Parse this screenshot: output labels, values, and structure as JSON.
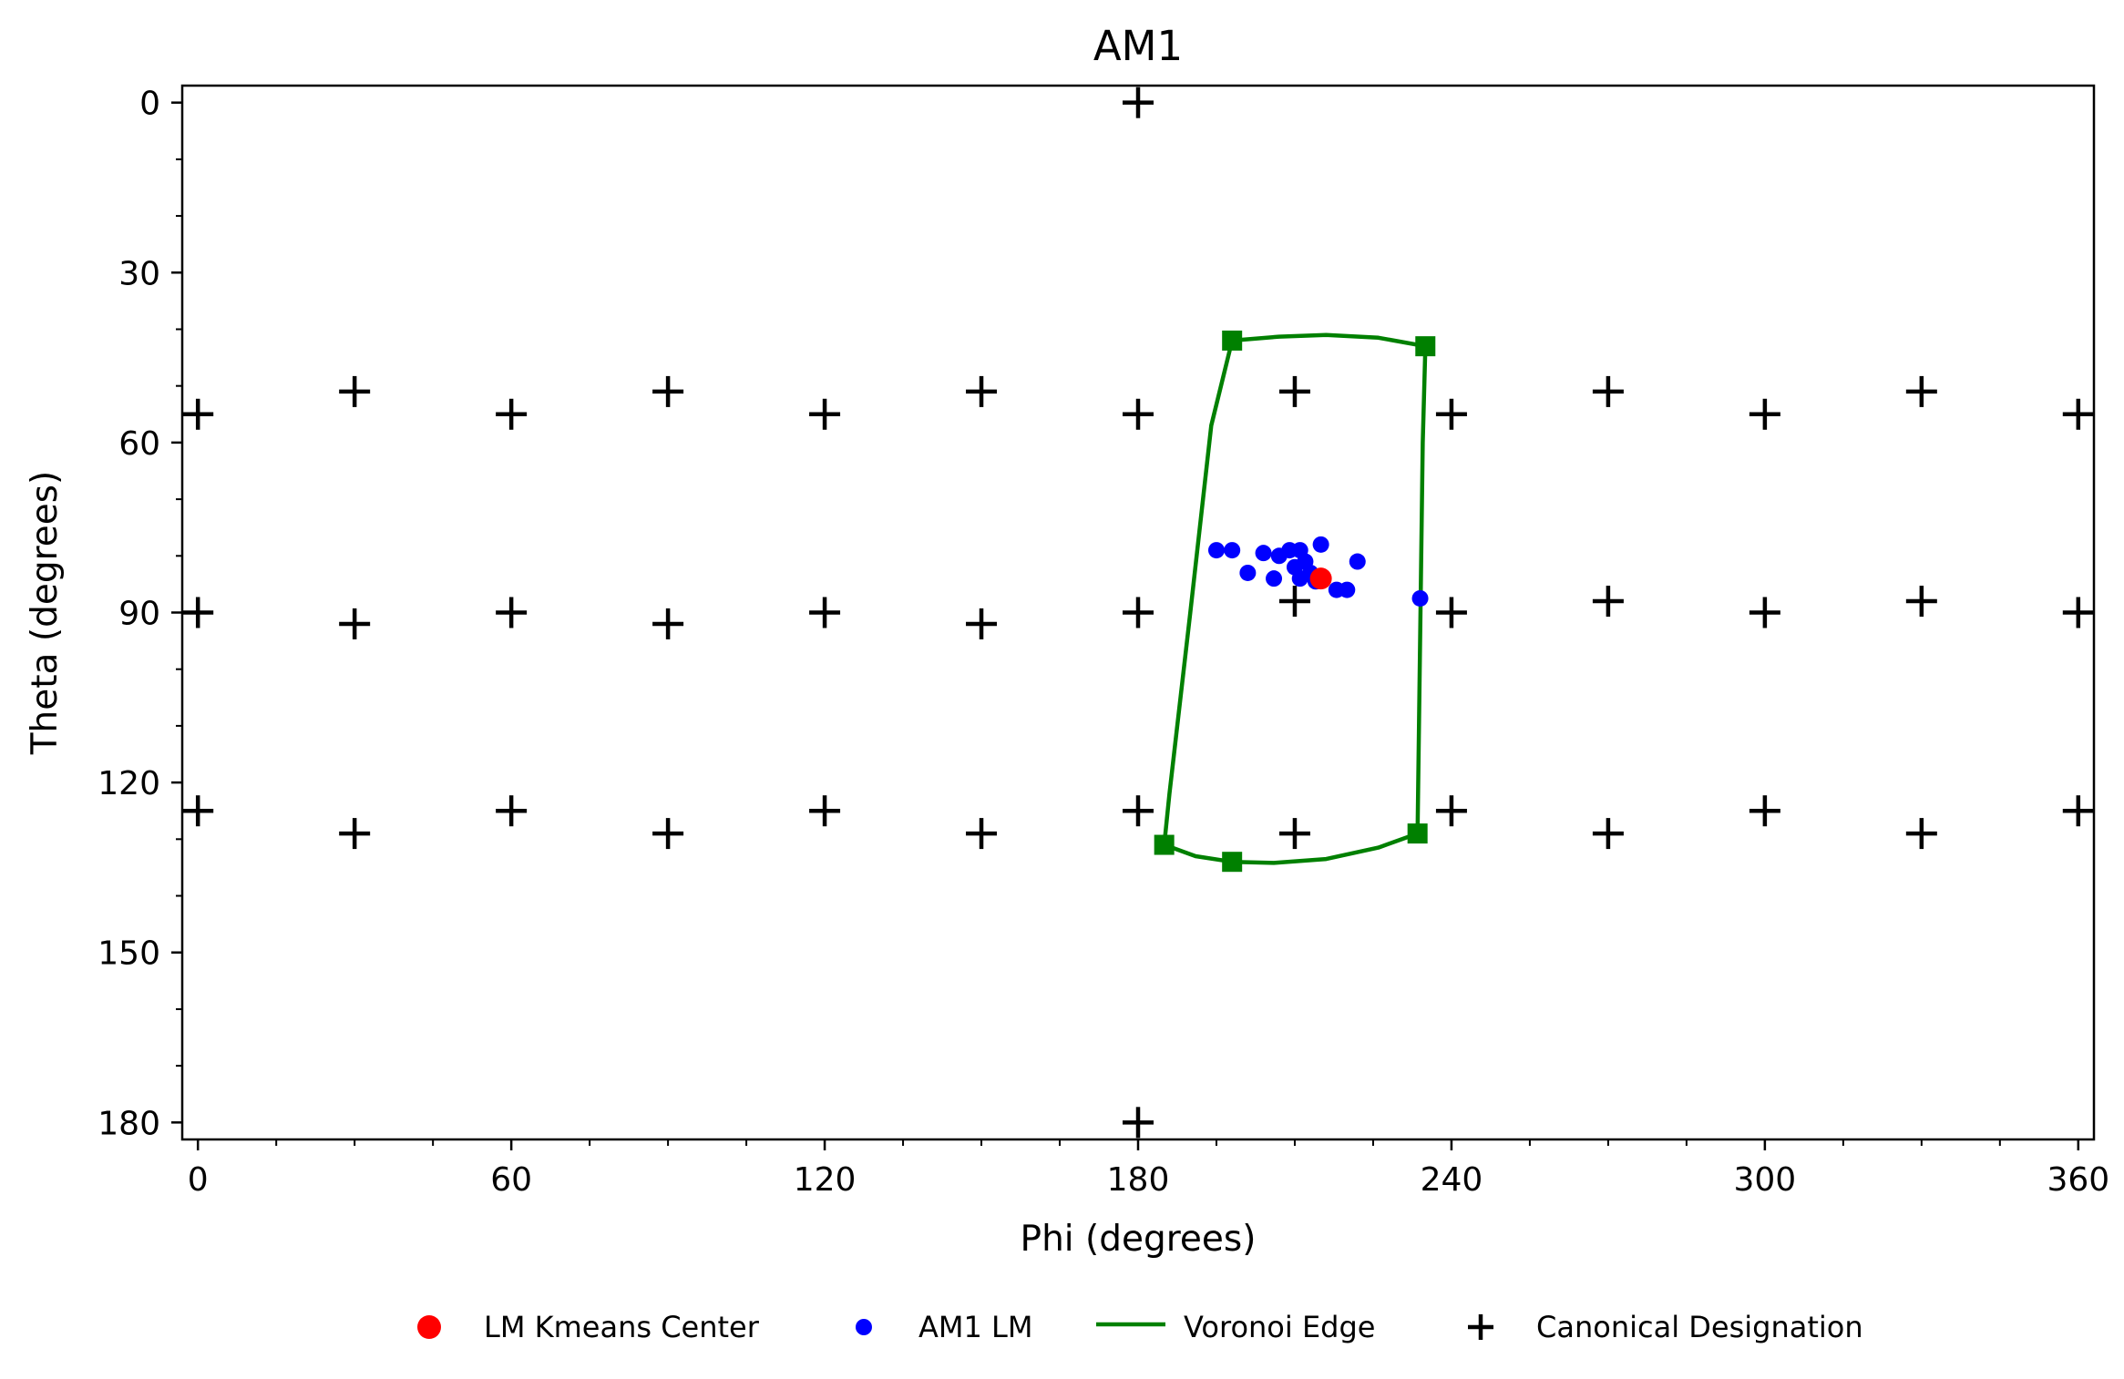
{
  "chart_data": {
    "type": "scatter",
    "title": "AM1",
    "xlabel": "Phi (degrees)",
    "ylabel": "Theta (degrees)",
    "xlim": [
      -3,
      363
    ],
    "ylim": [
      0,
      180
    ],
    "y_inverted": true,
    "xticks": [
      0,
      60,
      120,
      180,
      240,
      300,
      360
    ],
    "yticks": [
      0,
      30,
      60,
      90,
      120,
      150,
      180
    ],
    "grid": false,
    "legend_position": "bottom",
    "series": [
      {
        "name": "LM Kmeans Center",
        "kind": "circle",
        "color": "#ff0000",
        "points": [
          [
            215,
            84
          ]
        ]
      },
      {
        "name": "AM1 LM",
        "kind": "dot",
        "color": "#0000ff",
        "points": [
          [
            195,
            79
          ],
          [
            198,
            79
          ],
          [
            201,
            83
          ],
          [
            204,
            79.5
          ],
          [
            206,
            84
          ],
          [
            207,
            80
          ],
          [
            209,
            79
          ],
          [
            211,
            79
          ],
          [
            210,
            82
          ],
          [
            211,
            84
          ],
          [
            212,
            81
          ],
          [
            213,
            83
          ],
          [
            214,
            84.5
          ],
          [
            215,
            78
          ],
          [
            218,
            86
          ],
          [
            220,
            86
          ],
          [
            222,
            81
          ],
          [
            234,
            87.5
          ]
        ]
      },
      {
        "name": "Voronoi Edge",
        "kind": "line",
        "color": "#008000",
        "segments": [
          [
            [
              198,
              42
            ],
            [
              207,
              41.3
            ],
            [
              216,
              41
            ],
            [
              226,
              41.5
            ],
            [
              235,
              43
            ]
          ],
          [
            [
              198,
              42
            ],
            [
              194,
              57
            ],
            [
              190,
              90
            ],
            [
              186,
              122
            ],
            [
              185,
              131
            ]
          ],
          [
            [
              235,
              43
            ],
            [
              234.5,
              60
            ],
            [
              234,
              95
            ],
            [
              233.5,
              129
            ]
          ],
          [
            [
              185,
              131
            ],
            [
              191,
              133
            ],
            [
              198,
              134
            ],
            [
              206,
              134.2
            ],
            [
              216,
              133.5
            ],
            [
              226,
              131.5
            ],
            [
              233.5,
              129
            ]
          ]
        ],
        "vertices": [
          [
            198,
            42
          ],
          [
            235,
            43
          ],
          [
            185,
            131
          ],
          [
            198,
            134
          ],
          [
            233.5,
            129
          ]
        ]
      },
      {
        "name": "Canonical Designation",
        "kind": "plus",
        "color": "#000000",
        "points": [
          [
            180,
            0
          ],
          [
            180,
            180
          ],
          [
            0,
            55
          ],
          [
            30,
            51
          ],
          [
            60,
            55
          ],
          [
            90,
            51
          ],
          [
            120,
            55
          ],
          [
            150,
            51
          ],
          [
            180,
            55
          ],
          [
            210,
            51
          ],
          [
            240,
            55
          ],
          [
            270,
            51
          ],
          [
            300,
            55
          ],
          [
            330,
            51
          ],
          [
            360,
            55
          ],
          [
            0,
            90
          ],
          [
            30,
            92
          ],
          [
            60,
            90
          ],
          [
            90,
            92
          ],
          [
            120,
            90
          ],
          [
            150,
            92
          ],
          [
            180,
            90
          ],
          [
            210,
            88
          ],
          [
            240,
            90
          ],
          [
            270,
            88
          ],
          [
            300,
            90
          ],
          [
            330,
            88
          ],
          [
            360,
            90
          ],
          [
            0,
            125
          ],
          [
            30,
            129
          ],
          [
            60,
            125
          ],
          [
            90,
            129
          ],
          [
            120,
            125
          ],
          [
            150,
            129
          ],
          [
            180,
            125
          ],
          [
            210,
            129
          ],
          [
            240,
            125
          ],
          [
            270,
            129
          ],
          [
            300,
            125
          ],
          [
            330,
            129
          ],
          [
            360,
            125
          ]
        ]
      }
    ]
  }
}
